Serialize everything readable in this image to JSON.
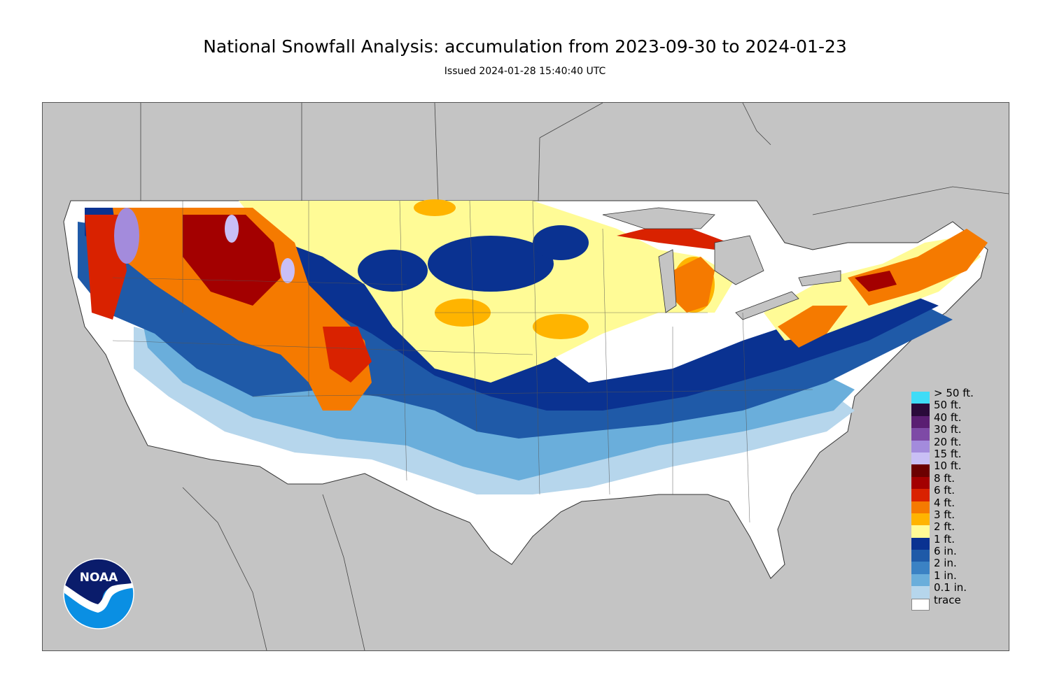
{
  "header": {
    "title": "National Snowfall Analysis: accumulation from 2023-09-30 to 2024-01-23",
    "issued": "Issued 2024-01-28 15:40:40 UTC"
  },
  "map": {
    "region": "Contiguous United States",
    "background_color": "#c4c4c4",
    "land_color": "#ffffff",
    "border_color": "#333333"
  },
  "legend": {
    "title": "",
    "items": [
      {
        "label": "> 50 ft.",
        "color": "#3fdcf7"
      },
      {
        "label": "50 ft.",
        "color": "#2a0a3a"
      },
      {
        "label": "40 ft.",
        "color": "#5a1e72"
      },
      {
        "label": "30 ft.",
        "color": "#7e4aa6"
      },
      {
        "label": "20 ft.",
        "color": "#a38bdc"
      },
      {
        "label": "15 ft.",
        "color": "#c9bff5"
      },
      {
        "label": "10 ft.",
        "color": "#6b0000"
      },
      {
        "label": "8 ft.",
        "color": "#a30000"
      },
      {
        "label": "6 ft.",
        "color": "#d92200"
      },
      {
        "label": "4 ft.",
        "color": "#f57a00"
      },
      {
        "label": "3 ft.",
        "color": "#ffb400"
      },
      {
        "label": "2 ft.",
        "color": "#fffb96"
      },
      {
        "label": "1 ft.",
        "color": "#0a3291"
      },
      {
        "label": "6 in.",
        "color": "#1f5aa8"
      },
      {
        "label": "2 in.",
        "color": "#3b82c4"
      },
      {
        "label": "1 in.",
        "color": "#6aaedb"
      },
      {
        "label": "0.1 in.",
        "color": "#b6d6ec"
      },
      {
        "label": "trace",
        "color": "#ffffff"
      }
    ]
  },
  "logo": {
    "text": "NOAA",
    "top_color": "#0a1c6b",
    "bottom_color": "#0a8fe3"
  }
}
